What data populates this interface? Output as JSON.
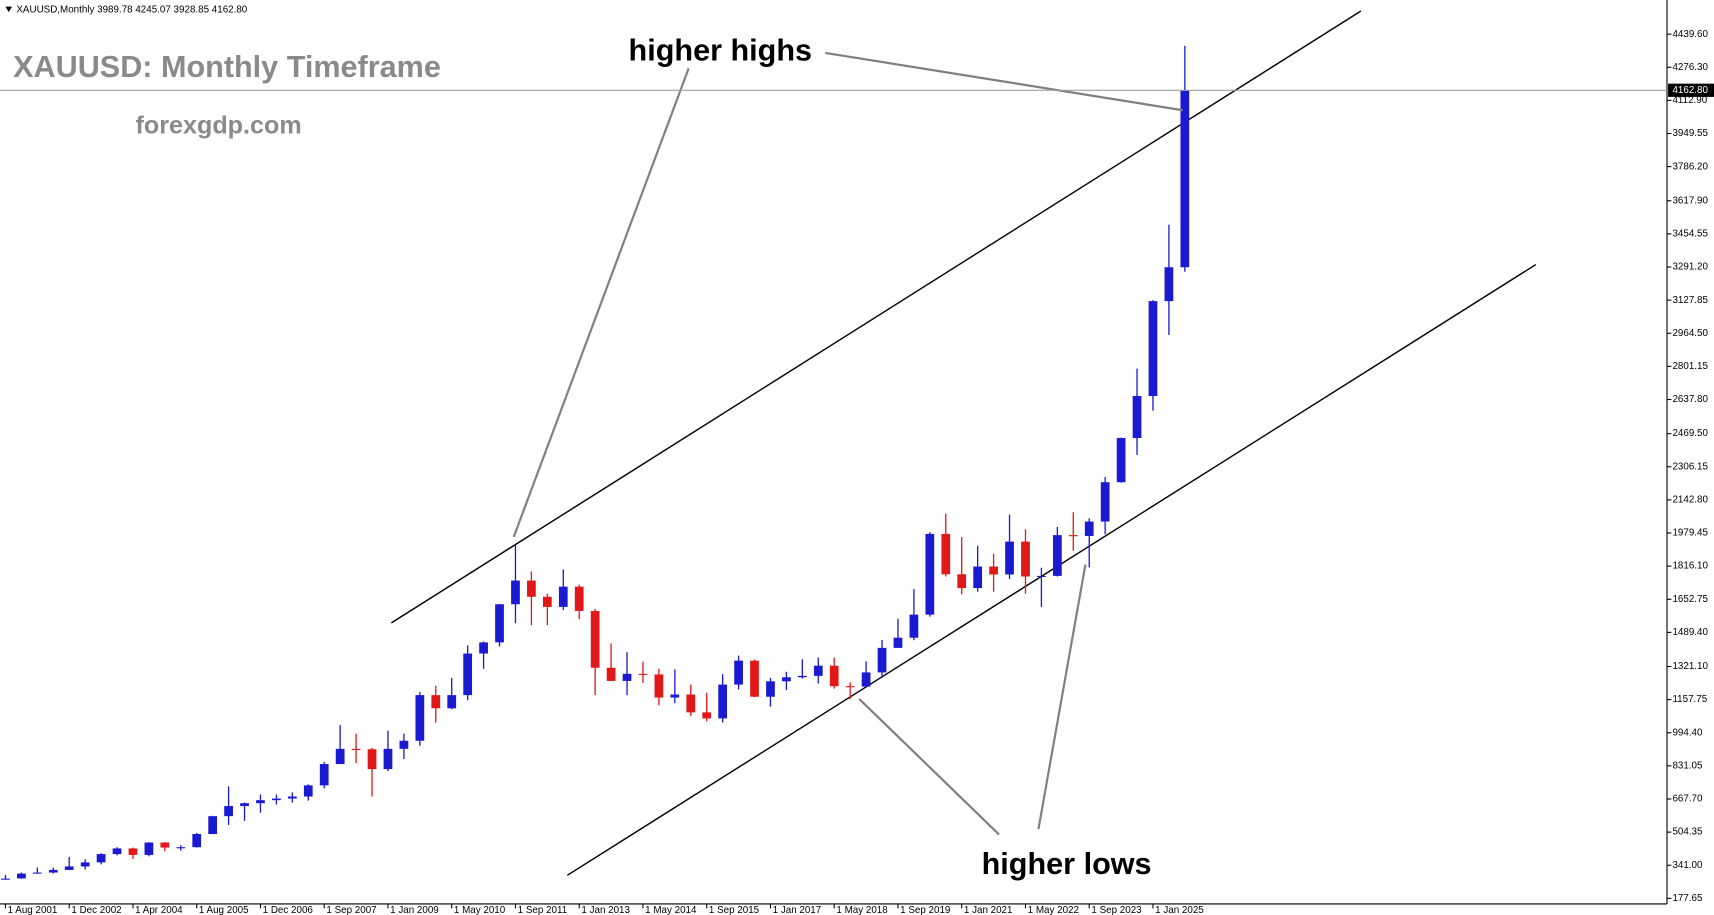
{
  "chart_data": {
    "type": "candlestick",
    "header": "XAUUSD,Monthly  3989.78 4245.07 3928.85 4162.80",
    "title": "XAUUSD: Monthly Timeframe",
    "subtitle": "forexgdp.com",
    "annotations": [
      "higher highs",
      "higher lows"
    ],
    "up_color": "#1a1ad0",
    "down_color": "#e01818",
    "grid": false,
    "current_price": {
      "value": 4162.8,
      "label": "4162.80"
    },
    "ylim": [
      150,
      4608
    ],
    "yticks": [
      {
        "value": 4439.6,
        "label": "4439.60"
      },
      {
        "value": 4276.3,
        "label": "4276.30"
      },
      {
        "value": 4112.9,
        "label": "4112.90"
      },
      {
        "value": 3949.55,
        "label": "3949.55"
      },
      {
        "value": 3786.2,
        "label": "3786.20"
      },
      {
        "value": 3617.9,
        "label": "3617.90"
      },
      {
        "value": 3454.55,
        "label": "3454.55"
      },
      {
        "value": 3291.2,
        "label": "3291.20"
      },
      {
        "value": 3127.85,
        "label": "3127.85"
      },
      {
        "value": 2964.5,
        "label": "2964.50"
      },
      {
        "value": 2801.15,
        "label": "2801.15"
      },
      {
        "value": 2637.8,
        "label": "2637.80"
      },
      {
        "value": 2469.5,
        "label": "2469.50"
      },
      {
        "value": 2306.15,
        "label": "2306.15"
      },
      {
        "value": 2142.8,
        "label": "2142.80"
      },
      {
        "value": 1979.45,
        "label": "1979.45"
      },
      {
        "value": 1816.1,
        "label": "1816.10"
      },
      {
        "value": 1652.75,
        "label": "1652.75"
      },
      {
        "value": 1489.4,
        "label": "1489.40"
      },
      {
        "value": 1321.1,
        "label": "1321.10"
      },
      {
        "value": 1157.75,
        "label": "1157.75"
      },
      {
        "value": 994.4,
        "label": "994.40"
      },
      {
        "value": 831.05,
        "label": "831.05"
      },
      {
        "value": 667.7,
        "label": "667.70"
      },
      {
        "value": 504.35,
        "label": "504.35"
      },
      {
        "value": 341.0,
        "label": "341.00"
      },
      {
        "value": 177.65,
        "label": "177.65"
      }
    ],
    "categories": [
      "1 Aug 2001",
      null,
      null,
      null,
      "1 Dec 2002",
      null,
      null,
      null,
      "1 Apr 2004",
      null,
      null,
      null,
      "1 Aug 2005",
      null,
      null,
      null,
      "1 Dec 2006",
      null,
      null,
      null,
      "1 Sep 2007",
      null,
      null,
      null,
      "1 Jan 2009",
      null,
      null,
      null,
      "1 May 2010",
      null,
      null,
      null,
      "1 Sep 2011",
      null,
      null,
      null,
      "1 Jan 2013",
      null,
      null,
      null,
      "1 May 2014",
      null,
      null,
      null,
      "1 Sep 2015",
      null,
      null,
      null,
      "1 Jan 2017",
      null,
      null,
      null,
      "1 May 2018",
      null,
      null,
      null,
      "1 Sep 2019",
      null,
      null,
      null,
      "1 Jan 2021",
      null,
      null,
      null,
      "1 May 2022",
      null,
      null,
      null,
      "1 Sep 2023",
      null,
      null,
      null,
      "1 Jan 2025",
      null,
      null
    ],
    "ohlc": [
      [
        273,
        293,
        270,
        275
      ],
      [
        276,
        305,
        275,
        300
      ],
      [
        302,
        330,
        300,
        305
      ],
      [
        305,
        330,
        300,
        318
      ],
      [
        318,
        382,
        318,
        335
      ],
      [
        335,
        370,
        320,
        355
      ],
      [
        355,
        400,
        345,
        396
      ],
      [
        396,
        430,
        390,
        424
      ],
      [
        424,
        428,
        372,
        392
      ],
      [
        392,
        455,
        385,
        453
      ],
      [
        453,
        455,
        410,
        428
      ],
      [
        428,
        440,
        413,
        430
      ],
      [
        430,
        500,
        428,
        495
      ],
      [
        495,
        585,
        495,
        583
      ],
      [
        583,
        730,
        540,
        633
      ],
      [
        633,
        650,
        560,
        647
      ],
      [
        647,
        690,
        600,
        662
      ],
      [
        662,
        690,
        640,
        670
      ],
      [
        670,
        700,
        650,
        680
      ],
      [
        680,
        740,
        660,
        735
      ],
      [
        735,
        850,
        720,
        840
      ],
      [
        840,
        1032,
        840,
        915
      ],
      [
        915,
        990,
        845,
        913
      ],
      [
        913,
        920,
        680,
        815
      ],
      [
        815,
        1005,
        805,
        915
      ],
      [
        915,
        990,
        865,
        955
      ],
      [
        955,
        1195,
        930,
        1180
      ],
      [
        1180,
        1226,
        1045,
        1115
      ],
      [
        1115,
        1265,
        1110,
        1180
      ],
      [
        1180,
        1425,
        1155,
        1385
      ],
      [
        1385,
        1445,
        1310,
        1440
      ],
      [
        1440,
        1630,
        1420,
        1628
      ],
      [
        1628,
        1920,
        1535,
        1745
      ],
      [
        1745,
        1790,
        1525,
        1665
      ],
      [
        1665,
        1680,
        1525,
        1615
      ],
      [
        1615,
        1800,
        1600,
        1715
      ],
      [
        1715,
        1725,
        1555,
        1595
      ],
      [
        1595,
        1605,
        1180,
        1315
      ],
      [
        1315,
        1435,
        1250,
        1250
      ],
      [
        1250,
        1392,
        1180,
        1285
      ],
      [
        1285,
        1345,
        1240,
        1282
      ],
      [
        1282,
        1310,
        1130,
        1168
      ],
      [
        1168,
        1307,
        1140,
        1183
      ],
      [
        1183,
        1232,
        1077,
        1095
      ],
      [
        1095,
        1192,
        1050,
        1065
      ],
      [
        1065,
        1283,
        1045,
        1232
      ],
      [
        1232,
        1375,
        1208,
        1350
      ],
      [
        1350,
        1355,
        1170,
        1172
      ],
      [
        1172,
        1265,
        1123,
        1248
      ],
      [
        1248,
        1295,
        1205,
        1268
      ],
      [
        1268,
        1357,
        1262,
        1275
      ],
      [
        1275,
        1366,
        1237,
        1325
      ],
      [
        1325,
        1365,
        1212,
        1224
      ],
      [
        1224,
        1243,
        1160,
        1222
      ],
      [
        1222,
        1346,
        1221,
        1292
      ],
      [
        1292,
        1452,
        1266,
        1413
      ],
      [
        1413,
        1557,
        1413,
        1463
      ],
      [
        1463,
        1703,
        1451,
        1577
      ],
      [
        1577,
        1984,
        1567,
        1975
      ],
      [
        1975,
        2075,
        1765,
        1776
      ],
      [
        1776,
        1959,
        1677,
        1708
      ],
      [
        1708,
        1916,
        1690,
        1814
      ],
      [
        1814,
        1877,
        1690,
        1775
      ],
      [
        1775,
        2070,
        1753,
        1937
      ],
      [
        1937,
        1998,
        1680,
        1765
      ],
      [
        1765,
        1808,
        1615,
        1768
      ],
      [
        1768,
        2010,
        1765,
        1969
      ],
      [
        1969,
        2082,
        1893,
        1965
      ],
      [
        1965,
        2052,
        1810,
        2036
      ],
      [
        2036,
        2255,
        1973,
        2230
      ],
      [
        2230,
        2450,
        2228,
        2448
      ],
      [
        2448,
        2790,
        2365,
        2655
      ],
      [
        2655,
        3128,
        2583,
        3123
      ],
      [
        3123,
        3500,
        2956,
        3290
      ],
      [
        3290,
        4382,
        3268,
        4162.8
      ]
    ]
  }
}
